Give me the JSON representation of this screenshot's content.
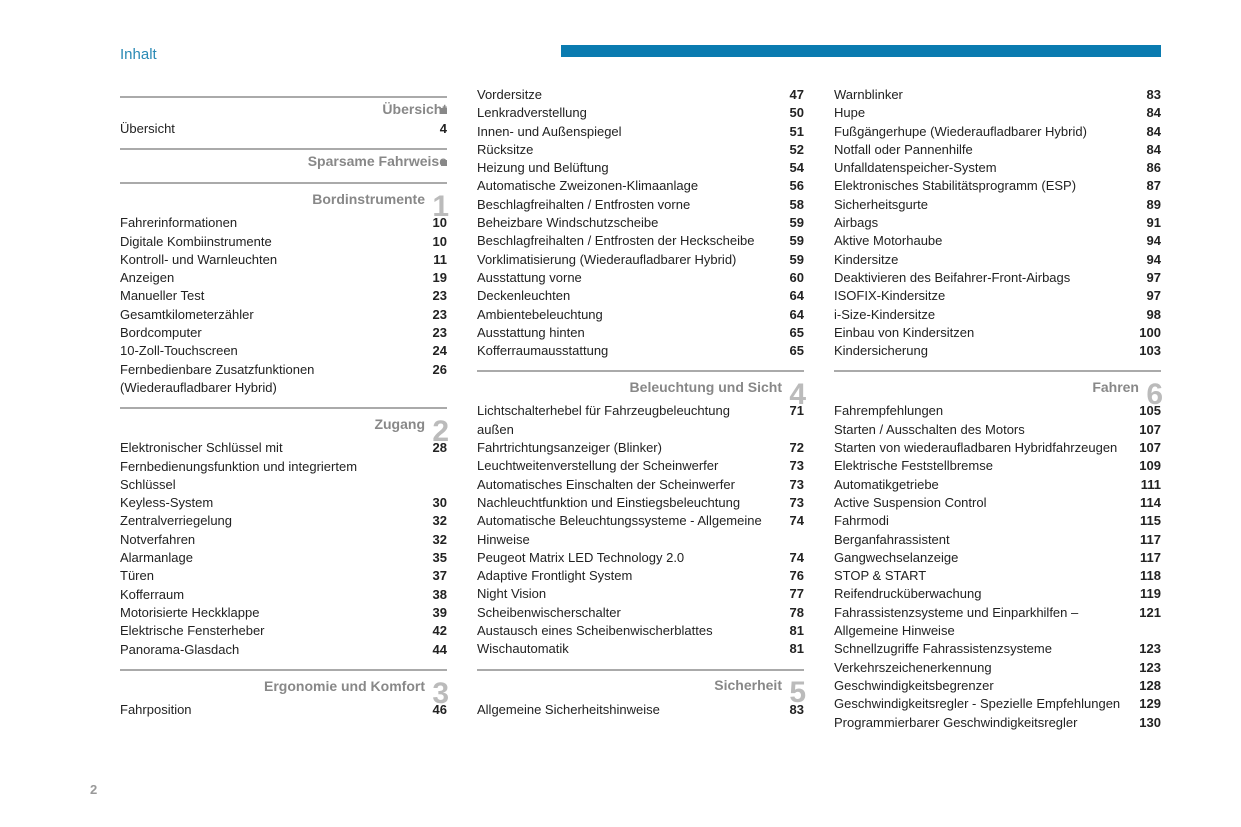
{
  "header_title": "Inhalt",
  "page_number": "2",
  "colors": {
    "accent": "#0a7bb0",
    "muted": "#888"
  },
  "columns": [
    [
      {
        "type": "section",
        "title": "Übersicht",
        "marker": "sq"
      },
      {
        "type": "entry",
        "label": "Übersicht",
        "page": "4"
      },
      {
        "type": "section",
        "title": "Sparsame Fahrweise",
        "marker": "sq"
      },
      {
        "type": "section",
        "title": "Bordinstrumente",
        "num": "1"
      },
      {
        "type": "entry",
        "label": "Fahrerinformationen",
        "page": "10"
      },
      {
        "type": "entry",
        "label": "Digitale Kombiinstrumente",
        "page": "10"
      },
      {
        "type": "entry",
        "label": "Kontroll- und Warnleuchten",
        "page": "11"
      },
      {
        "type": "entry",
        "label": "Anzeigen",
        "page": "19"
      },
      {
        "type": "entry",
        "label": "Manueller Test",
        "page": "23"
      },
      {
        "type": "entry",
        "label": "Gesamtkilometerzähler",
        "page": "23"
      },
      {
        "type": "entry",
        "label": "Bordcomputer",
        "page": "23"
      },
      {
        "type": "entry",
        "label": "10-Zoll-Touchscreen",
        "page": "24"
      },
      {
        "type": "entry",
        "label": "Fernbedienbare Zusatzfunktionen (Wiederaufladbarer Hybrid)",
        "page": "26"
      },
      {
        "type": "section",
        "title": "Zugang",
        "num": "2"
      },
      {
        "type": "entry",
        "label": "Elektronischer Schlüssel mit Fernbedienungsfunktion und integriertem Schlüssel",
        "page": "28"
      },
      {
        "type": "entry",
        "label": "Keyless-System",
        "page": "30"
      },
      {
        "type": "entry",
        "label": "Zentralverriegelung",
        "page": "32"
      },
      {
        "type": "entry",
        "label": "Notverfahren",
        "page": "32"
      },
      {
        "type": "entry",
        "label": "Alarmanlage",
        "page": "35"
      },
      {
        "type": "entry",
        "label": "Türen",
        "page": "37"
      },
      {
        "type": "entry",
        "label": "Kofferraum",
        "page": "38"
      },
      {
        "type": "entry",
        "label": "Motorisierte Heckklappe",
        "page": "39"
      },
      {
        "type": "entry",
        "label": "Elektrische Fensterheber",
        "page": "42"
      },
      {
        "type": "entry",
        "label": "Panorama-Glasdach",
        "page": "44"
      },
      {
        "type": "section",
        "title": "Ergonomie und Komfort",
        "num": "3"
      },
      {
        "type": "entry",
        "label": "Fahrposition",
        "page": "46"
      }
    ],
    [
      {
        "type": "entry",
        "label": "Vordersitze",
        "page": "47"
      },
      {
        "type": "entry",
        "label": "Lenkradverstellung",
        "page": "50"
      },
      {
        "type": "entry",
        "label": "Innen- und Außenspiegel",
        "page": "51"
      },
      {
        "type": "entry",
        "label": "Rücksitze",
        "page": "52"
      },
      {
        "type": "entry",
        "label": "Heizung und Belüftung",
        "page": "54"
      },
      {
        "type": "entry",
        "label": "Automatische Zweizonen-Klimaanlage",
        "page": "56"
      },
      {
        "type": "entry",
        "label": "Beschlagfreihalten / Entfrosten vorne",
        "page": "58"
      },
      {
        "type": "entry",
        "label": "Beheizbare Windschutzscheibe",
        "page": "59"
      },
      {
        "type": "entry",
        "label": "Beschlagfreihalten / Entfrosten der Heckscheibe",
        "page": "59"
      },
      {
        "type": "entry",
        "label": "Vorklimatisierung (Wiederaufladbarer Hybrid)",
        "page": "59"
      },
      {
        "type": "entry",
        "label": "Ausstattung vorne",
        "page": "60"
      },
      {
        "type": "entry",
        "label": "Deckenleuchten",
        "page": "64"
      },
      {
        "type": "entry",
        "label": "Ambientebeleuchtung",
        "page": "64"
      },
      {
        "type": "entry",
        "label": "Ausstattung hinten",
        "page": "65"
      },
      {
        "type": "entry",
        "label": "Kofferraumausstattung",
        "page": "65"
      },
      {
        "type": "section",
        "title": "Beleuchtung und Sicht",
        "num": "4"
      },
      {
        "type": "entry",
        "label": "Lichtschalterhebel für Fahrzeugbeleuchtung außen",
        "page": "71"
      },
      {
        "type": "entry",
        "label": "Fahrtrichtungsanzeiger (Blinker)",
        "page": "72"
      },
      {
        "type": "entry",
        "label": "Leuchtweitenverstellung der Scheinwerfer",
        "page": "73"
      },
      {
        "type": "entry",
        "label": "Automatisches Einschalten der Scheinwerfer",
        "page": "73"
      },
      {
        "type": "entry",
        "label": "Nachleuchtfunktion und Einstiegsbeleuchtung",
        "page": "73"
      },
      {
        "type": "entry",
        "label": "Automatische Beleuchtungssysteme - Allgemeine Hinweise",
        "page": "74"
      },
      {
        "type": "entry",
        "label": "Peugeot Matrix LED Technology 2.0",
        "page": "74"
      },
      {
        "type": "entry",
        "label": "Adaptive Frontlight System",
        "page": "76"
      },
      {
        "type": "entry",
        "label": "Night Vision",
        "page": "77"
      },
      {
        "type": "entry",
        "label": "Scheibenwischerschalter",
        "page": "78"
      },
      {
        "type": "entry",
        "label": "Austausch eines Scheibenwischerblattes",
        "page": "81"
      },
      {
        "type": "entry",
        "label": "Wischautomatik",
        "page": "81"
      },
      {
        "type": "section",
        "title": "Sicherheit",
        "num": "5"
      },
      {
        "type": "entry",
        "label": "Allgemeine Sicherheitshinweise",
        "page": "83"
      }
    ],
    [
      {
        "type": "entry",
        "label": "Warnblinker",
        "page": "83"
      },
      {
        "type": "entry",
        "label": "Hupe",
        "page": "84"
      },
      {
        "type": "entry",
        "label": "Fußgängerhupe (Wiederaufladbarer Hybrid)",
        "page": "84"
      },
      {
        "type": "entry",
        "label": "Notfall oder Pannenhilfe",
        "page": "84"
      },
      {
        "type": "entry",
        "label": "Unfalldatenspeicher-System",
        "page": "86"
      },
      {
        "type": "entry",
        "label": "Elektronisches Stabilitätsprogramm (ESP)",
        "page": "87"
      },
      {
        "type": "entry",
        "label": "Sicherheitsgurte",
        "page": "89"
      },
      {
        "type": "entry",
        "label": "Airbags",
        "page": "91"
      },
      {
        "type": "entry",
        "label": "Aktive Motorhaube",
        "page": "94"
      },
      {
        "type": "entry",
        "label": "Kindersitze",
        "page": "94"
      },
      {
        "type": "entry",
        "label": "Deaktivieren des Beifahrer-Front-Airbags",
        "page": "97"
      },
      {
        "type": "entry",
        "label": "ISOFIX-Kindersitze",
        "page": "97"
      },
      {
        "type": "entry",
        "label": "i-Size-Kindersitze",
        "page": "98"
      },
      {
        "type": "entry",
        "label": "Einbau von Kindersitzen",
        "page": "100"
      },
      {
        "type": "entry",
        "label": "Kindersicherung",
        "page": "103"
      },
      {
        "type": "section",
        "title": "Fahren",
        "num": "6"
      },
      {
        "type": "entry",
        "label": "Fahrempfehlungen",
        "page": "105"
      },
      {
        "type": "entry",
        "label": "Starten / Ausschalten des Motors",
        "page": "107"
      },
      {
        "type": "entry",
        "label": "Starten von wiederaufladbaren Hybridfahrzeugen",
        "page": "107"
      },
      {
        "type": "entry",
        "label": "Elektrische Feststellbremse",
        "page": "109"
      },
      {
        "type": "entry",
        "label": "Automatikgetriebe",
        "page": "111"
      },
      {
        "type": "entry",
        "label": "Active Suspension Control",
        "page": "114"
      },
      {
        "type": "entry",
        "label": "Fahrmodi",
        "page": "115"
      },
      {
        "type": "entry",
        "label": "Berganfahrassistent",
        "page": "117"
      },
      {
        "type": "entry",
        "label": "Gangwechselanzeige",
        "page": "117"
      },
      {
        "type": "entry",
        "label": "STOP & START",
        "page": "118"
      },
      {
        "type": "entry",
        "label": "Reifendrucküberwachung",
        "page": "119"
      },
      {
        "type": "entry",
        "label": "Fahrassistenzsysteme und Einparkhilfen – Allgemeine Hinweise",
        "page": "121"
      },
      {
        "type": "entry",
        "label": "Schnellzugriffe Fahrassistenzsysteme",
        "page": "123"
      },
      {
        "type": "entry",
        "label": "Verkehrszeichenerkennung",
        "page": "123"
      },
      {
        "type": "entry",
        "label": "Geschwindigkeitsbegrenzer",
        "page": "128"
      },
      {
        "type": "entry",
        "label": "Geschwindigkeitsregler - Spezielle Empfehlungen",
        "page": "129"
      },
      {
        "type": "entry",
        "label": "Programmierbarer Geschwindigkeitsregler",
        "page": "130"
      }
    ]
  ]
}
